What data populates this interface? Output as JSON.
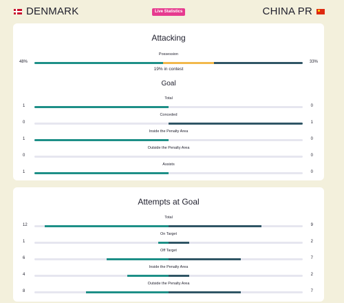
{
  "header": {
    "home_team": "DENMARK",
    "away_team": "CHINA PR",
    "badge": "Live Statistics",
    "home_flag_icon": "denmark-flag-icon",
    "away_flag_icon": "china-flag-icon"
  },
  "colors": {
    "home": "#1d8f87",
    "away": "#2f5565",
    "contest": "#f2b84b",
    "badge": "#e63a8f"
  },
  "attacking": {
    "title": "Attacking",
    "possession": {
      "label": "Possession",
      "home": "48%",
      "away": "33%",
      "home_pct": 48,
      "contest_pct": 19,
      "away_pct": 33,
      "contest_text": "19% in contest"
    },
    "goal": {
      "title": "Goal",
      "stats": [
        {
          "label": "Total",
          "home": 1,
          "away": 0
        },
        {
          "label": "Conceded",
          "home": 0,
          "away": 1
        },
        {
          "label": "Inside the Penalty Area",
          "home": 1,
          "away": 0
        },
        {
          "label": "Outside the Penalty Area",
          "home": 0,
          "away": 0
        },
        {
          "label": "Assists",
          "home": 1,
          "away": 0
        }
      ]
    }
  },
  "attempts": {
    "title": "Attempts at Goal",
    "stats": [
      {
        "label": "Total",
        "home": 12,
        "away": 9
      },
      {
        "label": "On Target",
        "home": 1,
        "away": 2
      },
      {
        "label": "Off Target",
        "home": 6,
        "away": 7
      },
      {
        "label": "Inside the Penalty Area",
        "home": 4,
        "away": 2
      },
      {
        "label": "Outside the Penalty Area",
        "home": 8,
        "away": 7
      }
    ]
  }
}
